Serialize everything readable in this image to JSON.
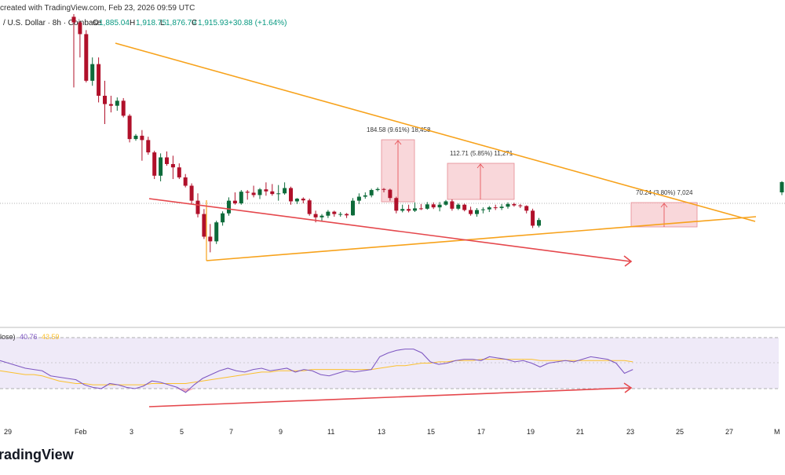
{
  "header": {
    "created_text": "created with TradingView.com, Feb 23, 2026 09:59 UTC",
    "symbol_text": "/ U.S. Dollar · 8h · Coinbase",
    "o_label": "O",
    "o_value": "1,885.04",
    "h_label": "H",
    "h_value": "1,918.75",
    "l_label": "L",
    "l_value": "1,876.79",
    "c_label": "C",
    "c_value": "1,915.93",
    "change_text": "+30.88 (+1.64%)"
  },
  "rsi": {
    "label": "lose)",
    "value_rsi": "40.76",
    "value_ma": "43.59",
    "upper": 70,
    "lower": 30
  },
  "x_axis": {
    "ticks": [
      "29",
      "Feb",
      "3",
      "5",
      "7",
      "9",
      "11",
      "13",
      "15",
      "17",
      "19",
      "21",
      "23",
      "25",
      "27",
      "M"
    ]
  },
  "logo": {
    "text": "radingView"
  },
  "colors": {
    "up": "#089981",
    "up_body": "#0d6b3a",
    "down": "#b0102a",
    "triangle": "#f7a21b",
    "trend": "#e5484d",
    "rsi_line": "#7e57c2",
    "rsi_ma": "#fbc02d",
    "rsi_band": "#efeaf8"
  },
  "chart_data": {
    "type": "candlestick",
    "title": "/ U.S. Dollar · 8h · Coinbase",
    "price_scale": {
      "top": 2420,
      "bottom": 1680
    },
    "candles": [
      [
        2412,
        2420,
        2200,
        2395
      ],
      [
        2395,
        2400,
        2290,
        2360
      ],
      [
        2360,
        2372,
        2215,
        2220
      ],
      [
        2220,
        2290,
        2205,
        2270
      ],
      [
        2270,
        2290,
        2155,
        2175
      ],
      [
        2175,
        2220,
        2090,
        2150
      ],
      [
        2150,
        2175,
        2125,
        2145
      ],
      [
        2145,
        2170,
        2130,
        2160
      ],
      [
        2160,
        2168,
        2110,
        2115
      ],
      [
        2115,
        2120,
        2035,
        2045
      ],
      [
        2045,
        2060,
        2040,
        2055
      ],
      [
        2055,
        2072,
        1980,
        2042
      ],
      [
        2042,
        2052,
        1998,
        2005
      ],
      [
        2005,
        2010,
        1925,
        1935
      ],
      [
        1935,
        2002,
        1918,
        1990
      ],
      [
        1990,
        2008,
        1965,
        1970
      ],
      [
        1970,
        1995,
        1925,
        1960
      ],
      [
        1960,
        1972,
        1925,
        1930
      ],
      [
        1930,
        1940,
        1900,
        1905
      ],
      [
        1905,
        1912,
        1850,
        1860
      ],
      [
        1860,
        1882,
        1810,
        1820
      ],
      [
        1820,
        1835,
        1745,
        1752
      ],
      [
        1752,
        1790,
        1705,
        1738
      ],
      [
        1738,
        1800,
        1730,
        1795
      ],
      [
        1795,
        1828,
        1785,
        1822
      ],
      [
        1822,
        1870,
        1815,
        1860
      ],
      [
        1860,
        1885,
        1848,
        1852
      ],
      [
        1852,
        1892,
        1848,
        1887
      ],
      [
        1887,
        1892,
        1863,
        1884
      ],
      [
        1884,
        1905,
        1870,
        1877
      ],
      [
        1877,
        1898,
        1865,
        1894
      ],
      [
        1894,
        1915,
        1875,
        1888
      ],
      [
        1888,
        1910,
        1875,
        1880
      ],
      [
        1880,
        1907,
        1860,
        1882
      ],
      [
        1882,
        1915,
        1878,
        1898
      ],
      [
        1898,
        1902,
        1848,
        1858
      ],
      [
        1858,
        1868,
        1850,
        1866
      ],
      [
        1866,
        1870,
        1852,
        1861
      ],
      [
        1861,
        1866,
        1815,
        1820
      ],
      [
        1820,
        1830,
        1795,
        1810
      ],
      [
        1810,
        1820,
        1800,
        1815
      ],
      [
        1815,
        1832,
        1808,
        1827
      ],
      [
        1827,
        1830,
        1812,
        1820
      ],
      [
        1820,
        1826,
        1812,
        1820
      ],
      [
        1820,
        1823,
        1808,
        1816
      ],
      [
        1816,
        1868,
        1815,
        1860
      ],
      [
        1860,
        1882,
        1850,
        1872
      ],
      [
        1872,
        1885,
        1866,
        1876
      ],
      [
        1876,
        1896,
        1870,
        1892
      ],
      [
        1892,
        1900,
        1888,
        1895
      ],
      [
        1895,
        1898,
        1885,
        1893
      ],
      [
        1893,
        1896,
        1860,
        1868
      ],
      [
        1868,
        1872,
        1822,
        1830
      ],
      [
        1830,
        1848,
        1825,
        1835
      ],
      [
        1835,
        1848,
        1825,
        1830
      ],
      [
        1830,
        1855,
        1826,
        1837
      ],
      [
        1837,
        1850,
        1832,
        1836
      ],
      [
        1836,
        1856,
        1833,
        1849
      ],
      [
        1849,
        1855,
        1835,
        1840
      ],
      [
        1840,
        1856,
        1828,
        1848
      ],
      [
        1848,
        1862,
        1845,
        1858
      ],
      [
        1858,
        1864,
        1830,
        1836
      ],
      [
        1836,
        1852,
        1832,
        1848
      ],
      [
        1848,
        1851,
        1828,
        1832
      ],
      [
        1832,
        1842,
        1815,
        1820
      ],
      [
        1820,
        1838,
        1812,
        1832
      ],
      [
        1832,
        1840,
        1822,
        1834
      ],
      [
        1834,
        1844,
        1826,
        1840
      ],
      [
        1840,
        1848,
        1832,
        1838
      ],
      [
        1838,
        1850,
        1832,
        1842
      ],
      [
        1842,
        1855,
        1836,
        1850
      ],
      [
        1850,
        1854,
        1842,
        1846
      ],
      [
        1846,
        1850,
        1838,
        1844
      ],
      [
        1844,
        1846,
        1822,
        1830
      ],
      [
        1830,
        1836,
        1778,
        1785
      ],
      [
        1785,
        1808,
        1780,
        1802
      ]
    ],
    "last_candle": [
      1885.04,
      1918.75,
      1876.79,
      1915.93
    ],
    "current_price_level": 1816,
    "measurements": [
      {
        "label": "184.58 (9.61%) 18,458",
        "from_price": 1816,
        "to_price": 1898
      },
      {
        "label": "112.71 (5.85%) 11,271",
        "from_price": 1818,
        "to_price": 1873
      },
      {
        "label": "70.24 (3.80%) 7,024",
        "from_price": 1780,
        "to_price": 1816
      }
    ],
    "rsi_values": [
      52,
      50,
      48,
      46,
      45,
      44,
      40,
      39,
      38,
      37,
      33,
      31,
      30,
      34,
      33,
      31,
      30,
      32,
      36,
      35,
      33,
      31,
      27,
      33,
      38,
      41,
      44,
      46,
      44,
      43,
      45,
      46,
      44,
      45,
      46,
      43,
      45,
      44,
      41,
      40,
      42,
      44,
      43,
      44,
      45,
      55,
      58,
      60,
      61,
      61,
      58,
      51,
      49,
      50,
      52,
      53,
      53,
      52,
      55,
      54,
      53,
      51,
      52,
      50,
      47,
      50,
      51,
      52,
      51,
      53,
      55,
      54,
      53,
      50,
      42,
      45
    ],
    "rsi_ma_values": [
      44,
      43,
      42,
      41,
      41,
      40,
      38,
      36,
      35,
      34,
      34,
      33,
      33,
      33,
      33,
      33,
      33,
      33,
      34,
      34,
      34,
      34,
      34,
      35,
      36,
      37,
      38,
      39,
      40,
      41,
      42,
      43,
      43,
      44,
      44,
      44,
      44,
      45,
      45,
      45,
      45,
      45,
      45,
      45,
      45,
      46,
      47,
      48,
      48,
      49,
      50,
      50,
      51,
      51,
      52,
      52,
      52,
      53,
      53,
      53,
      53,
      53,
      53,
      53,
      52,
      52,
      52,
      52,
      52,
      52,
      52,
      52,
      52,
      52,
      52,
      51
    ],
    "rsi_range": [
      0,
      100
    ]
  }
}
